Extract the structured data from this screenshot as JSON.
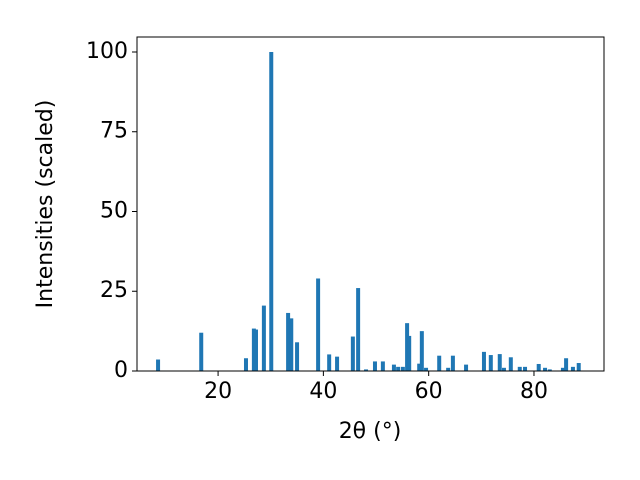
{
  "chart_data": {
    "type": "bar",
    "x_label": "2θ (°)",
    "y_label": "Intensities (scaled)",
    "color": "#1f77b4",
    "x": [
      8.6,
      16.8,
      25.3,
      26.8,
      27.2,
      28.7,
      30.1,
      33.3,
      33.9,
      35.0,
      39.0,
      41.1,
      42.6,
      45.6,
      46.6,
      48.1,
      49.8,
      51.3,
      53.4,
      54.2,
      55.1,
      55.9,
      56.3,
      58.2,
      58.7,
      59.5,
      62.0,
      63.7,
      64.6,
      67.1,
      70.5,
      71.8,
      73.5,
      74.3,
      75.6,
      77.3,
      78.3,
      80.9,
      82.1,
      83.0,
      85.5,
      86.1,
      87.4,
      88.5
    ],
    "values": [
      3.6,
      12,
      4,
      13.3,
      13,
      20.5,
      100,
      18.2,
      16.5,
      9,
      29,
      5.2,
      4.5,
      10.8,
      26,
      0.5,
      3,
      3,
      2,
      1.3,
      1.3,
      15,
      11,
      2.3,
      12.5,
      1,
      4.8,
      1,
      4.8,
      2,
      6,
      5,
      5.3,
      1,
      4.3,
      1.3,
      1.3,
      2.2,
      1,
      0.5,
      1,
      4,
      1.3,
      2.5
    ],
    "xlim": [
      4.6,
      93.3
    ],
    "ylim": [
      0,
      104.7
    ],
    "xticks": [
      20,
      40,
      60,
      80
    ],
    "yticks": [
      0,
      25,
      50,
      75,
      100
    ],
    "grid": false
  }
}
